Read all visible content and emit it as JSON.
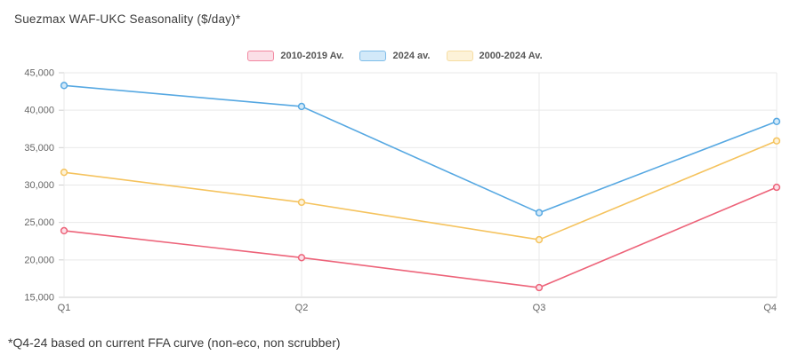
{
  "header": {
    "title": "Suezmax WAF-UKC Seasonality ($/day)*"
  },
  "footnote": "*Q4-24 based on current FFA curve (non-eco, non scrubber)",
  "colors": {
    "grid": "#e9e9e9",
    "axis": "#cfcfcf",
    "tick_label": "#666666",
    "title_text": "#3a3a3a"
  },
  "chart_data": {
    "type": "line",
    "title": "Suezmax WAF-UKC Seasonality ($/day)*",
    "categories": [
      "Q1",
      "Q2",
      "Q3",
      "Q4"
    ],
    "series": [
      {
        "name": "2010-2019 Av.",
        "values": [
          23900,
          20300,
          16300,
          29700
        ],
        "color": "#ed6379",
        "fill": "#fbdfe7"
      },
      {
        "name": "2024 av.",
        "values": [
          43300,
          40500,
          26300,
          38500
        ],
        "color": "#56a8e2",
        "fill": "#d2e9f9"
      },
      {
        "name": "2000-2024 Av.",
        "values": [
          31700,
          27700,
          22700,
          35900
        ],
        "color": "#f5c35e",
        "fill": "#fdf2d8"
      }
    ],
    "xlabel": "",
    "ylabel": "",
    "ylim": [
      15000,
      45000
    ],
    "ytick_step": 5000,
    "yticklabels": [
      "15,000",
      "20,000",
      "25,000",
      "30,000",
      "35,000",
      "40,000",
      "45,000"
    ],
    "grid": true,
    "legend_position": "top-center"
  }
}
